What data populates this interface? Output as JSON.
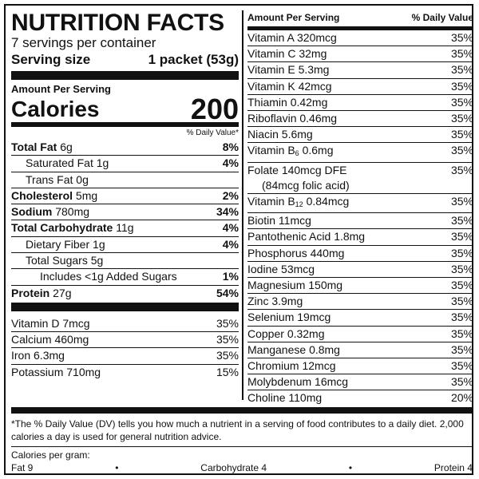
{
  "label": {
    "title": "NUTRITION FACTS",
    "servings": "7 servings per container",
    "serving_size_label": "Serving size",
    "serving_size_value": "1 packet (53g)",
    "amount_per_serving": "Amount Per Serving",
    "calories_label": "Calories",
    "calories_value": "200",
    "dv_header": "% Daily Value*"
  },
  "nutrients": [
    {
      "name": "Total Fat",
      "amount": "6g",
      "dv": "8%",
      "bold": true
    },
    {
      "name": "Saturated Fat",
      "amount": "1g",
      "dv": "4%",
      "bold": false
    },
    {
      "name": "Trans Fat",
      "amount": "0g",
      "dv": "",
      "bold": false
    },
    {
      "name": "Cholesterol",
      "amount": "5mg",
      "dv": "2%",
      "bold": true
    },
    {
      "name": "Sodium",
      "amount": "780mg",
      "dv": "34%",
      "bold": true
    },
    {
      "name": "Total Carbohydrate",
      "amount": "11g",
      "dv": "4%",
      "bold": true
    },
    {
      "name": "Dietary Fiber",
      "amount": "1g",
      "dv": "4%",
      "bold": false
    },
    {
      "name": "Total Sugars",
      "amount": "5g",
      "dv": "",
      "bold": false
    },
    {
      "name": "Includes <1g Added Sugars",
      "amount": "",
      "dv": "1%",
      "bold": false
    },
    {
      "name": "Protein",
      "amount": "27g",
      "dv": "54%",
      "bold": true
    }
  ],
  "vitamins_left": [
    {
      "name": "Vitamin D",
      "amount": "7mcg",
      "dv": "35%"
    },
    {
      "name": "Calcium",
      "amount": "460mg",
      "dv": "35%"
    },
    {
      "name": "Iron",
      "amount": "6.3mg",
      "dv": "35%"
    },
    {
      "name": "Potassium",
      "amount": "710mg",
      "dv": "15%"
    }
  ],
  "right_header": {
    "left": "Amount Per Serving",
    "right": "% Daily Value"
  },
  "vitamins_right": [
    {
      "name": "Vitamin A",
      "amount": "320mcg",
      "dv": "35%"
    },
    {
      "name": "Vitamin C",
      "amount": "32mg",
      "dv": "35%"
    },
    {
      "name": "Vitamin E",
      "amount": "5.3mg",
      "dv": "35%"
    },
    {
      "name": "Vitamin K",
      "amount": "42mcg",
      "dv": "35%"
    },
    {
      "name": "Thiamin",
      "amount": "0.42mg",
      "dv": "35%"
    },
    {
      "name": "Riboflavin",
      "amount": "0.46mg",
      "dv": "35%"
    },
    {
      "name": "Niacin",
      "amount": "5.6mg",
      "dv": "35%"
    },
    {
      "name": "Vitamin B",
      "sub": "6",
      "amount": "0.6mg",
      "dv": "35%"
    },
    {
      "name": "Folate",
      "amount": "140mcg DFE",
      "extra": "(84mcg folic acid)",
      "dv": "35%"
    },
    {
      "name": "Vitamin B",
      "sub": "12",
      "amount": "0.84mcg",
      "dv": "35%"
    },
    {
      "name": "Biotin",
      "amount": "11mcg",
      "dv": "35%"
    },
    {
      "name": "Pantothenic Acid",
      "amount": "1.8mg",
      "dv": "35%"
    },
    {
      "name": "Phosphorus",
      "amount": "440mg",
      "dv": "35%"
    },
    {
      "name": "Iodine",
      "amount": "53mcg",
      "dv": "35%"
    },
    {
      "name": "Magnesium",
      "amount": "150mg",
      "dv": "35%"
    },
    {
      "name": "Zinc",
      "amount": "3.9mg",
      "dv": "35%"
    },
    {
      "name": "Selenium",
      "amount": "19mcg",
      "dv": "35%"
    },
    {
      "name": "Copper",
      "amount": "0.32mg",
      "dv": "35%"
    },
    {
      "name": "Manganese",
      "amount": "0.8mg",
      "dv": "35%"
    },
    {
      "name": "Chromium",
      "amount": "12mcg",
      "dv": "35%"
    },
    {
      "name": "Molybdenum",
      "amount": "16mcg",
      "dv": "35%"
    },
    {
      "name": "Choline",
      "amount": "110mg",
      "dv": "20%"
    }
  ],
  "footer": {
    "note": "*The % Daily Value (DV) tells you how much a nutrient in a serving of food contributes to a daily diet. 2,000 calories a day is used for general nutrition advice.",
    "calories_per_gram": "Calories per gram:",
    "fat": "Fat 9",
    "carbohydrate": "Carbohydrate 4",
    "protein": "Protein 4",
    "bullet": "•"
  }
}
